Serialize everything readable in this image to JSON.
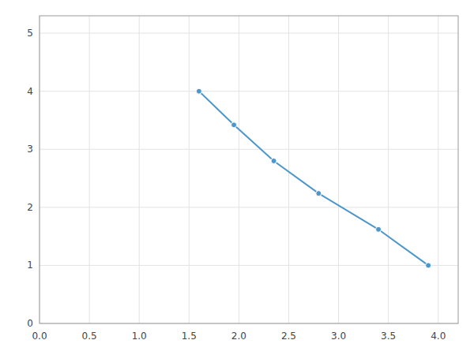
{
  "chart_data": {
    "type": "line",
    "x": [
      1.6,
      1.95,
      2.35,
      2.8,
      3.4,
      3.9
    ],
    "values": [
      4.0,
      3.42,
      2.8,
      2.24,
      1.62,
      1.0
    ],
    "color": "#4d96c9",
    "marker": "circle",
    "xlim": [
      0.0,
      4.2
    ],
    "ylim": [
      0,
      5.3
    ],
    "xticks": [
      {
        "value": 0.0,
        "label": "0.0"
      },
      0.5,
      {
        "value": 1.0,
        "label": "1.0"
      },
      1.5,
      {
        "value": 2.0,
        "label": "2.0"
      },
      2.5,
      {
        "value": 3.0,
        "label": "3.0"
      },
      3.5,
      {
        "value": 4.0,
        "label": "4.0"
      }
    ],
    "yticks": [
      0,
      1,
      2,
      3,
      4,
      5
    ],
    "grid": true
  }
}
